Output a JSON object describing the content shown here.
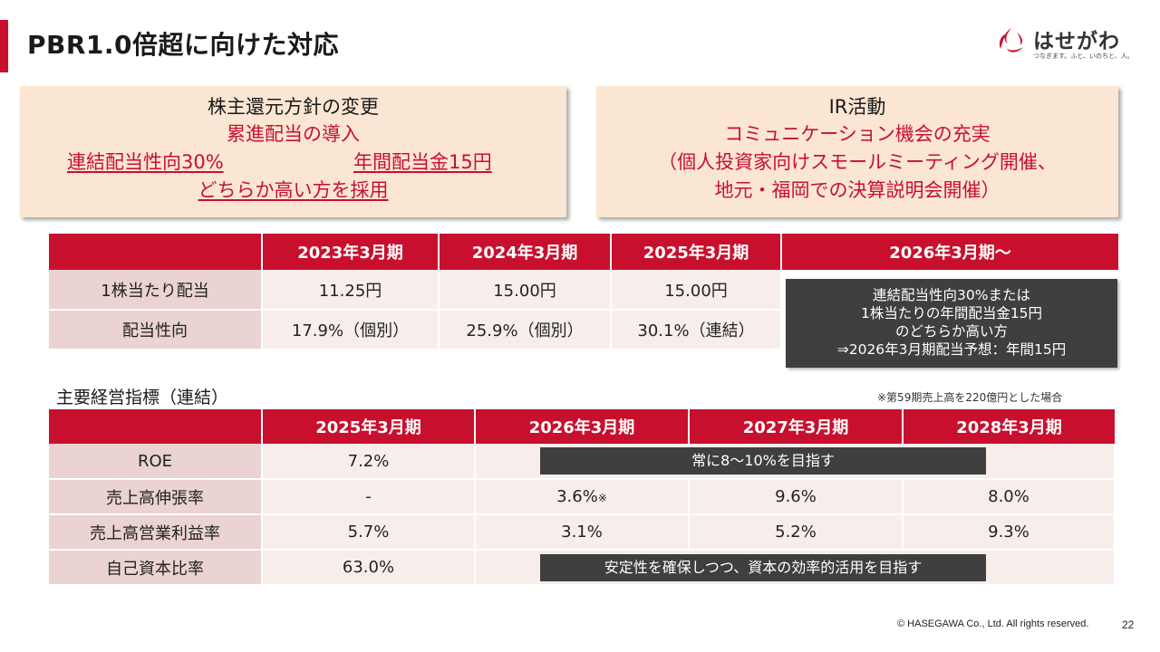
{
  "header": {
    "title": "PBR1.0倍超に向けた対応"
  },
  "logo": {
    "name": "はせがわ",
    "tagline": "つなぎます。ふと、いのちと、人。",
    "brand_color": "#c8102e"
  },
  "shareholder_box": {
    "title": "株主還元方針の変更",
    "line1": "累進配当の導入",
    "line2a": "連結配当性向30%",
    "line2b": "年間配当金15円",
    "line3": "どちらか高い方を採用"
  },
  "ir_box": {
    "title": "IR活動",
    "line1": "コミュニケーション機会の充実",
    "line2": "（個人投資家向けスモールミーティング開催、",
    "line3": "地元・福岡での決算説明会開催）"
  },
  "dividend_table": {
    "headers": [
      "",
      "2023年3月期",
      "2024年3月期",
      "2025年3月期",
      "2026年3月期～"
    ],
    "rows": [
      {
        "label": "1株当たり配当",
        "values": [
          "11.25円",
          "15.00円",
          "15.00円"
        ]
      },
      {
        "label": "配当性向",
        "values": [
          "17.9%（個別）",
          "25.9%（個別）",
          "30.1%（連結）"
        ]
      }
    ],
    "policy_note": {
      "line1": "連結配当性向30%または",
      "line2": "1株当たりの年間配当金15円",
      "line3": "のどちらか高い方",
      "line4": "⇒2026年3月期配当予想：年間15円"
    }
  },
  "kpi_section": {
    "label": "主要経営指標（連結）",
    "note": "※第59期売上高を220億円とした場合",
    "headers": [
      "",
      "2025年3月期",
      "2026年3月期",
      "2027年3月期",
      "2028年3月期"
    ],
    "rows": [
      {
        "label": "ROE",
        "values": [
          "7.2%",
          "",
          "",
          ""
        ]
      },
      {
        "label": "売上高伸張率",
        "values": [
          "-",
          "3.6%",
          "9.6%",
          "8.0%"
        ],
        "mark": "※"
      },
      {
        "label": "売上高営業利益率",
        "values": [
          "5.7%",
          "3.1%",
          "5.2%",
          "9.3%"
        ]
      },
      {
        "label": "自己資本比率",
        "values": [
          "63.0%",
          "",
          "",
          ""
        ]
      }
    ],
    "roe_target": "常に8～10%を目指す",
    "equity_target": "安定性を確保しつつ、資本の効率的活用を目指す"
  },
  "footer": {
    "copyright": "© HASEGAWA Co., Ltd. All rights reserved.",
    "page": "22"
  }
}
